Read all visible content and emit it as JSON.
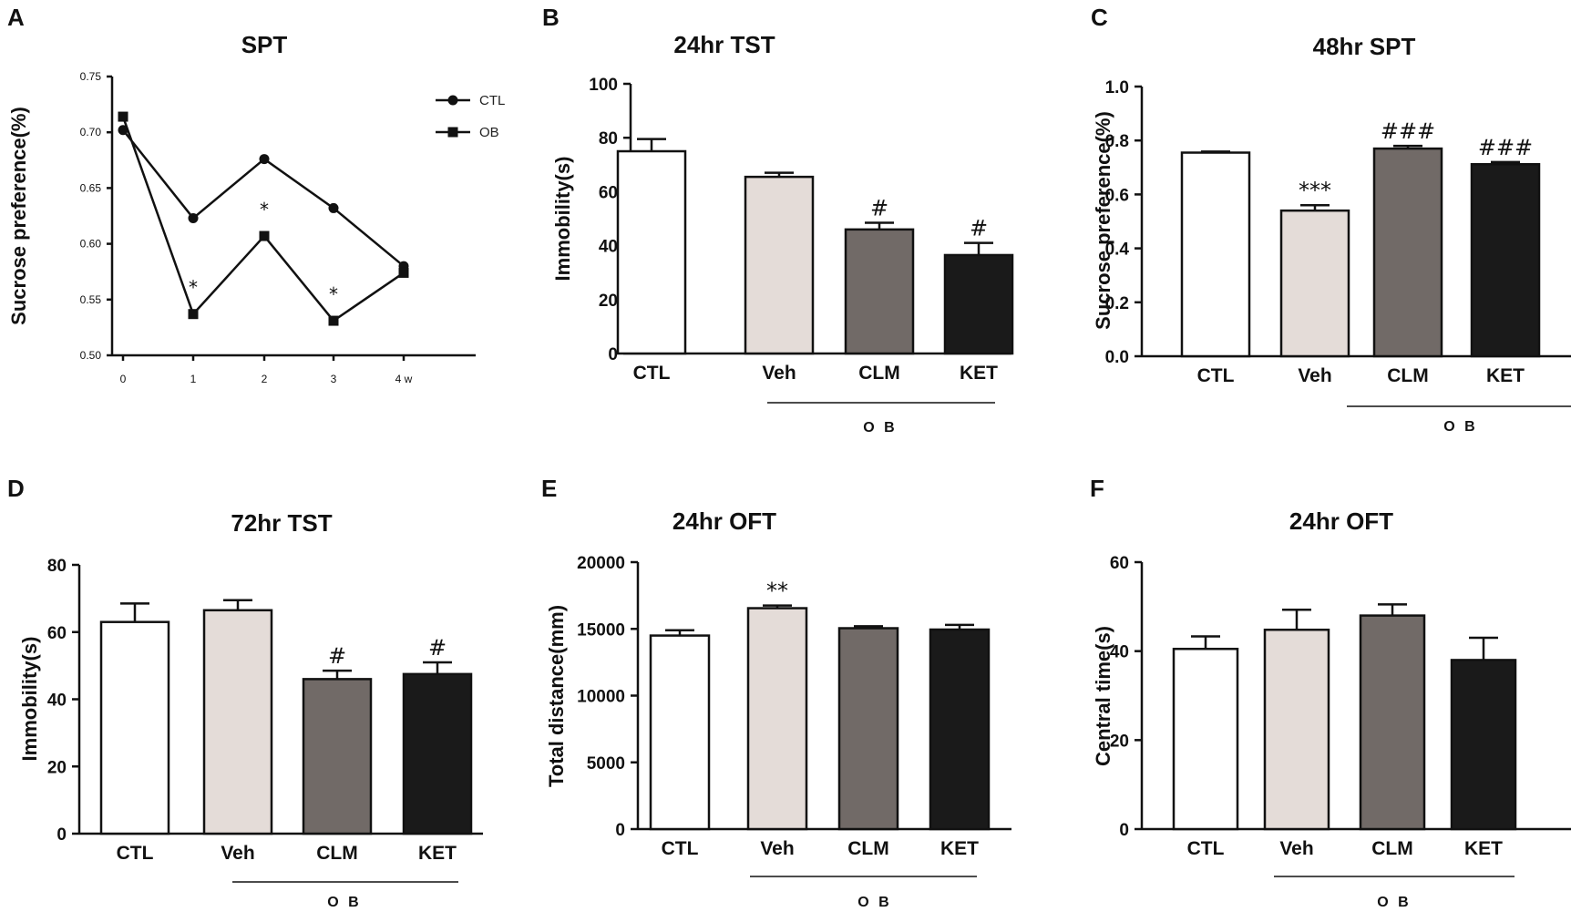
{
  "colors": {
    "CTL": "#ffffff",
    "Veh": "#e4dcd8",
    "CLM": "#716a67",
    "KET": "#1a1a1a",
    "axis": "#111111"
  },
  "chart_data": [
    {
      "panel": "A",
      "type": "line",
      "title": "SPT",
      "ylabel": "Sucrose preference(%)",
      "xlabel": "",
      "x": [
        "0",
        "1",
        "2",
        "3",
        "4 w"
      ],
      "yticks": [
        "0.50",
        "0.55",
        "0.60",
        "0.65",
        "0.70",
        "0.75"
      ],
      "ylim": [
        0.5,
        0.75
      ],
      "series": [
        {
          "name": "CTL",
          "marker": "circle",
          "values": [
            0.702,
            0.623,
            0.676,
            0.632,
            0.58
          ]
        },
        {
          "name": "OB",
          "marker": "square",
          "values": [
            0.714,
            0.537,
            0.607,
            0.531,
            0.574
          ]
        }
      ],
      "annotations": [
        {
          "index": 1,
          "series": "OB",
          "text": "*"
        },
        {
          "index": 2,
          "series": "OB",
          "text": "*"
        },
        {
          "index": 3,
          "series": "OB",
          "text": "*"
        }
      ],
      "legend": "top-right"
    },
    {
      "panel": "B",
      "type": "bar",
      "title": "24hr TST",
      "ylabel": "Immobility(s)",
      "categories": [
        "CTL",
        "Veh",
        "CLM",
        "KET"
      ],
      "values": [
        75,
        65.5,
        46,
        36.5
      ],
      "errors": [
        4.5,
        1.5,
        2.5,
        4.5
      ],
      "ylim": [
        0,
        100
      ],
      "yticks": [
        "0",
        "20",
        "40",
        "60",
        "80",
        "100"
      ],
      "annotations": [
        "",
        "",
        "#",
        "#"
      ],
      "group_label": "O B",
      "group_span": [
        "Veh",
        "KET"
      ]
    },
    {
      "panel": "C",
      "type": "bar",
      "title": "48hr SPT",
      "ylabel": "Sucrose preference(%)",
      "categories": [
        "CTL",
        "Veh",
        "CLM",
        "KET"
      ],
      "values": [
        0.755,
        0.54,
        0.77,
        0.712
      ],
      "errors": [
        0.004,
        0.02,
        0.01,
        0.008
      ],
      "ylim": [
        0,
        1.0
      ],
      "yticks": [
        "0.0",
        "0.2",
        "0.4",
        "0.6",
        "0.8",
        "1.0"
      ],
      "annotations": [
        "",
        "***",
        "###",
        "###"
      ],
      "group_label": "O B",
      "group_span": [
        "CLM",
        "KET"
      ]
    },
    {
      "panel": "D",
      "type": "bar",
      "title": "72hr TST",
      "ylabel": "Immobility(s)",
      "categories": [
        "CTL",
        "Veh",
        "CLM",
        "KET"
      ],
      "values": [
        63,
        66.5,
        46,
        47.5
      ],
      "errors": [
        5.5,
        3,
        2.5,
        3.5
      ],
      "ylim": [
        0,
        80
      ],
      "yticks": [
        "0",
        "20",
        "40",
        "60",
        "80"
      ],
      "annotations": [
        "",
        "",
        "#",
        "#"
      ],
      "group_label": "O B",
      "group_span": [
        "Veh",
        "KET"
      ]
    },
    {
      "panel": "E",
      "type": "bar",
      "title": "24hr OFT",
      "ylabel": "Total distance(mm)",
      "categories": [
        "CTL",
        "Veh",
        "CLM",
        "KET"
      ],
      "values": [
        14500,
        16550,
        15050,
        14950
      ],
      "errors": [
        400,
        200,
        150,
        350
      ],
      "ylim": [
        0,
        20000
      ],
      "yticks": [
        "0",
        "5000",
        "10000",
        "15000",
        "20000"
      ],
      "annotations": [
        "",
        "**",
        "",
        ""
      ],
      "group_label": "O B",
      "group_span": [
        "Veh",
        "KET"
      ]
    },
    {
      "panel": "F",
      "type": "bar",
      "title": "24hr OFT",
      "ylabel": "Central time(s)",
      "categories": [
        "CTL",
        "Veh",
        "CLM",
        "KET"
      ],
      "values": [
        40.5,
        44.8,
        48,
        38
      ],
      "errors": [
        2.8,
        4.5,
        2.5,
        5
      ],
      "ylim": [
        0,
        60
      ],
      "yticks": [
        "0",
        "20",
        "40",
        "60"
      ],
      "annotations": [
        "",
        "",
        "",
        ""
      ],
      "group_label": "O B",
      "group_span": [
        "Veh",
        "KET"
      ]
    }
  ]
}
